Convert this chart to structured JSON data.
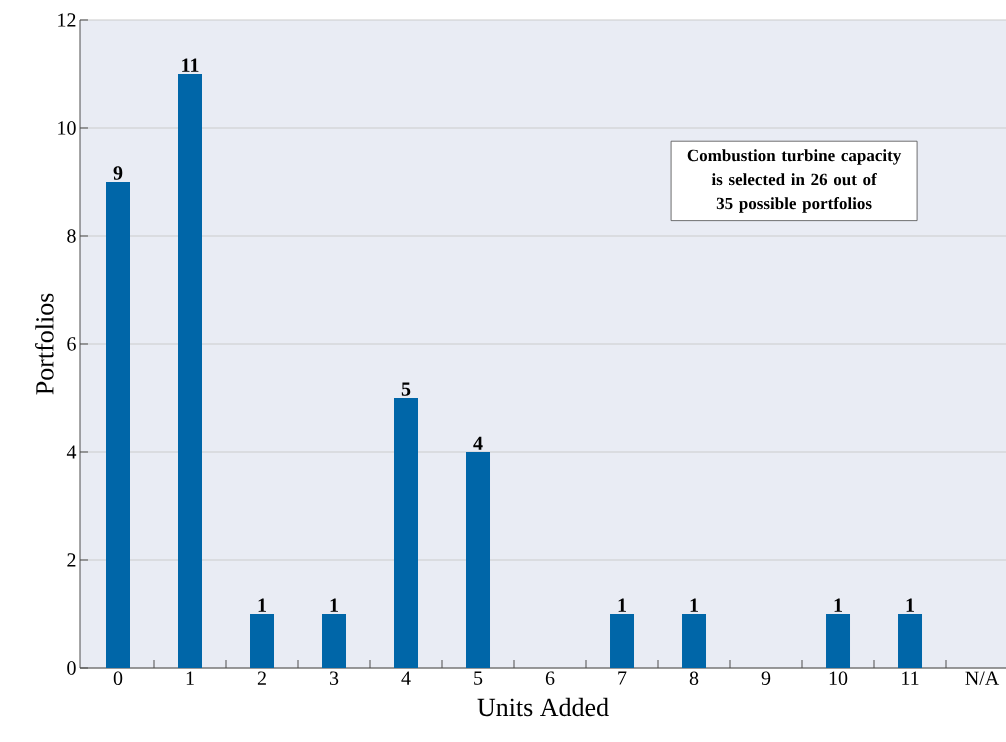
{
  "chart_data": {
    "type": "bar",
    "categories": [
      "0",
      "1",
      "2",
      "3",
      "4",
      "5",
      "6",
      "7",
      "8",
      "9",
      "10",
      "11",
      "N/A"
    ],
    "values": [
      9,
      11,
      1,
      1,
      5,
      4,
      null,
      1,
      1,
      null,
      1,
      1,
      null
    ],
    "color": "#0066a8",
    "xlabel": "Units Added",
    "ylabel": "Portfolios",
    "ylim": [
      0,
      12
    ],
    "yticks": [
      0,
      2,
      4,
      6,
      8,
      10,
      12
    ],
    "grid": "y",
    "data_labels": true,
    "annotations": [
      "Combustion turbine capacity is selected in 26 out of 35 possible portfolios"
    ]
  }
}
